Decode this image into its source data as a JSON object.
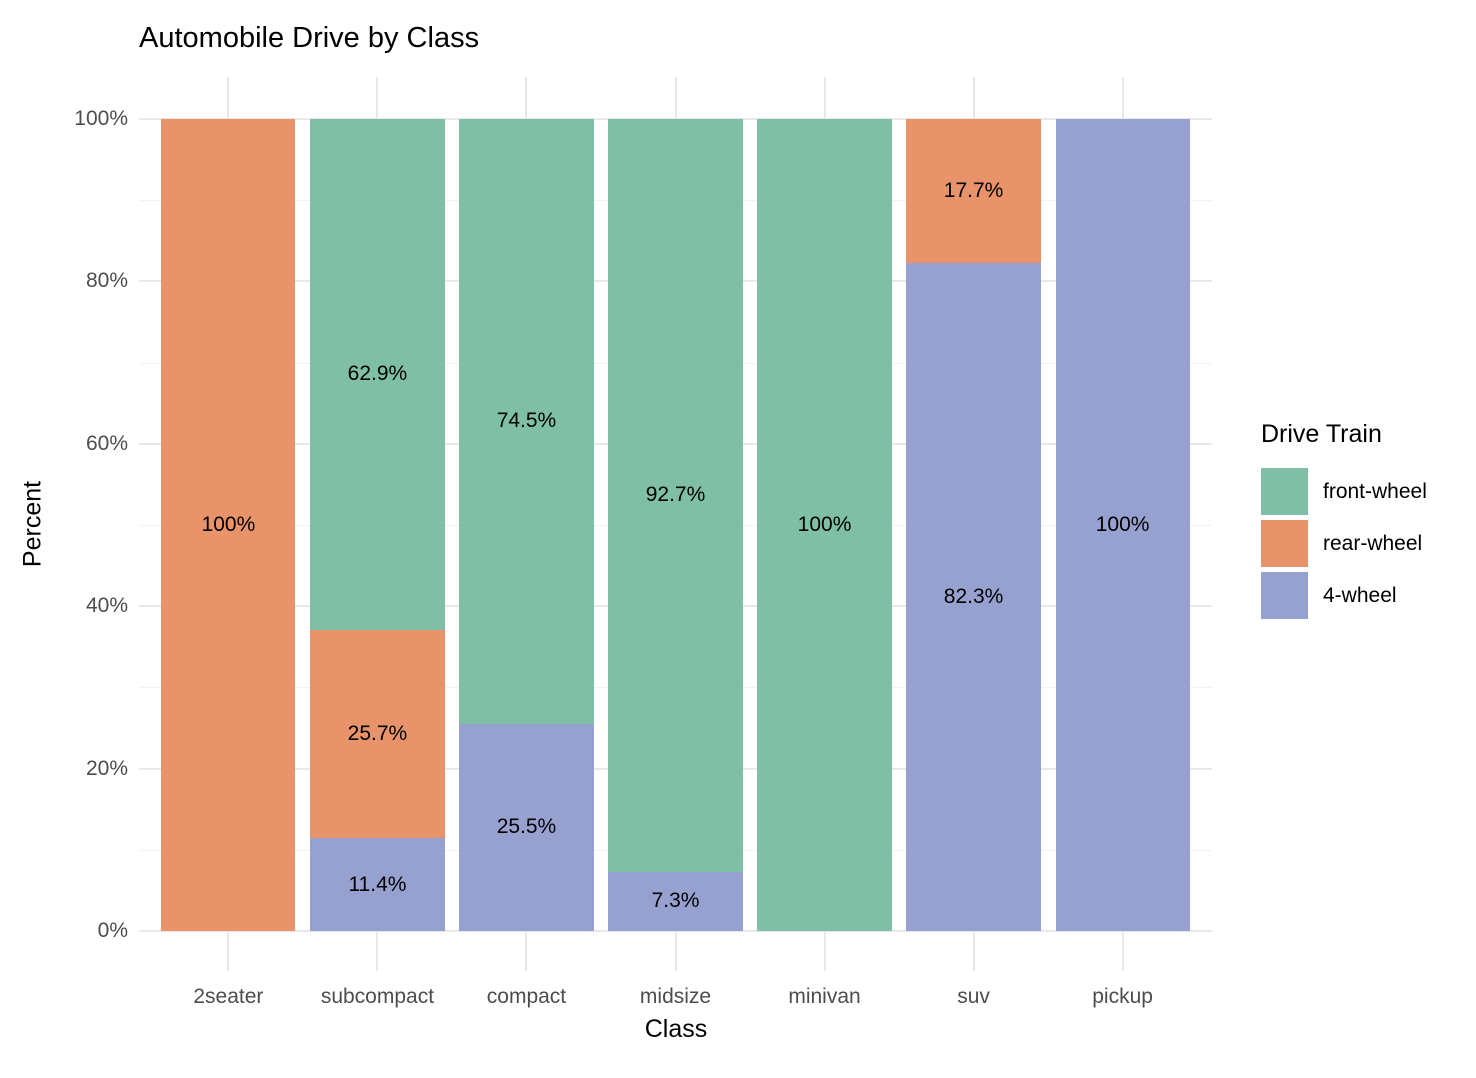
{
  "title": "Automobile Drive by Class",
  "axes": {
    "x": {
      "label": "Class",
      "tick_labels": [
        "2seater",
        "subcompact",
        "compact",
        "midsize",
        "minivan",
        "suv",
        "pickup"
      ]
    },
    "y": {
      "label": "Percent",
      "ticks": [
        {
          "value": 0,
          "label": "0%"
        },
        {
          "value": 20,
          "label": "20%"
        },
        {
          "value": 40,
          "label": "40%"
        },
        {
          "value": 60,
          "label": "60%"
        },
        {
          "value": 80,
          "label": "80%"
        },
        {
          "value": 100,
          "label": "100%"
        }
      ],
      "minor_tick_values": [
        10,
        30,
        50,
        70,
        90
      ]
    }
  },
  "legend": {
    "title": "Drive Train",
    "position": "right",
    "items": [
      {
        "label": "front-wheel",
        "color": "#7FBFA5"
      },
      {
        "label": "rear-wheel",
        "color": "#E9936B"
      },
      {
        "label": "4-wheel",
        "color": "#97A1CF"
      }
    ]
  },
  "colors": {
    "background": "#FFFFFF",
    "grid_major": "#E8E8E8",
    "grid_minor": "#F2F2F2",
    "axis_text": "#4D4D4D",
    "title_text": "#000000",
    "bar_label_text": "#000000"
  },
  "chart_data": {
    "type": "bar",
    "stacked": true,
    "orientation": "vertical",
    "title": "Automobile Drive by Class",
    "xlabel": "Class",
    "ylabel": "Percent",
    "ylim": [
      0,
      100
    ],
    "y_unit": "percent",
    "grid": true,
    "legend_position": "right",
    "categories": [
      "2seater",
      "subcompact",
      "compact",
      "midsize",
      "minivan",
      "suv",
      "pickup"
    ],
    "stack_order_top_to_bottom": [
      "front-wheel",
      "rear-wheel",
      "4-wheel"
    ],
    "series": [
      {
        "name": "front-wheel",
        "color": "#7FBFA5",
        "values": [
          null,
          62.9,
          74.5,
          92.7,
          100,
          null,
          null
        ],
        "labels": [
          null,
          "62.9%",
          "74.5%",
          "92.7%",
          "100%",
          null,
          null
        ]
      },
      {
        "name": "rear-wheel",
        "color": "#E9936B",
        "values": [
          100,
          25.7,
          null,
          null,
          null,
          17.7,
          null
        ],
        "labels": [
          "100%",
          "25.7%",
          null,
          null,
          null,
          "17.7%",
          null
        ]
      },
      {
        "name": "4-wheel",
        "color": "#97A1CF",
        "values": [
          null,
          11.4,
          25.5,
          7.3,
          null,
          82.3,
          100
        ],
        "labels": [
          null,
          "11.4%",
          "25.5%",
          "7.3%",
          null,
          "82.3%",
          "100%"
        ]
      }
    ]
  }
}
